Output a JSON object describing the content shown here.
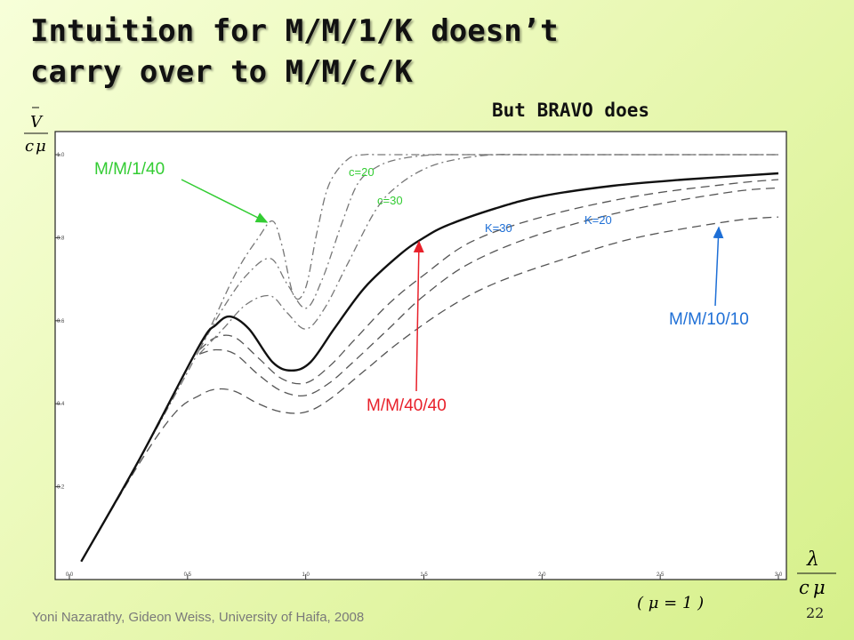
{
  "slide": {
    "title_line1": "Intuition for M/M/1/K doesn’t",
    "title_line2": "carry over to M/M/c/K",
    "subtitle": "But BRAVO does",
    "footer": "Yoni Nazarathy, Gideon Weiss, University of Haifa, 2008",
    "page_number": "22"
  },
  "axis_text": {
    "y_num": "V",
    "y_den_c": "c",
    "y_den_mu": "μ",
    "x_num": "λ",
    "x_den_c": "c",
    "x_den_mu": "μ",
    "x_note": "( μ = 1 )"
  },
  "annotations": {
    "mm1_40": "M/M/1/40",
    "c20": "c=20",
    "c30": "c=30",
    "k30": "K=30",
    "k20": "K=20",
    "mm10_10": "M/M/10/10",
    "mm40_40": "M/M/40/40"
  },
  "colors": {
    "green": "#33cc33",
    "red": "#e8202a",
    "blue": "#1e6fd6",
    "curve": "#111111",
    "dashed": "#555555",
    "dashdot": "#777777"
  },
  "chart_data": {
    "type": "line",
    "xlim": [
      0,
      3.0
    ],
    "ylim": [
      0,
      1.05
    ],
    "xticks": [
      "0.0",
      "0.5",
      "1.0",
      "1.5",
      "2.0",
      "2.5",
      "3.0"
    ],
    "yticks": [
      "0.2",
      "0.4",
      "0.6",
      "0.8",
      "1.0"
    ],
    "grid": false,
    "series": [
      {
        "name": "M/M/40/40",
        "style": "solid",
        "x": [
          0.05,
          0.3,
          0.55,
          0.62,
          0.68,
          0.76,
          0.86,
          0.94,
          1.02,
          1.12,
          1.25,
          1.4,
          1.5,
          1.6,
          1.8,
          2.0,
          2.3,
          2.6,
          3.0
        ],
        "y": [
          0.02,
          0.27,
          0.54,
          0.59,
          0.61,
          0.58,
          0.5,
          0.48,
          0.5,
          0.58,
          0.68,
          0.76,
          0.8,
          0.83,
          0.87,
          0.9,
          0.925,
          0.94,
          0.955
        ]
      },
      {
        "name": "K=30",
        "style": "dashed",
        "x": [
          0.55,
          0.62,
          0.7,
          0.8,
          0.9,
          1.0,
          1.1,
          1.2,
          1.35,
          1.5,
          1.7,
          2.0,
          2.4,
          2.8,
          3.0
        ],
        "y": [
          0.53,
          0.56,
          0.56,
          0.51,
          0.46,
          0.45,
          0.49,
          0.55,
          0.64,
          0.71,
          0.79,
          0.85,
          0.9,
          0.93,
          0.94
        ]
      },
      {
        "name": "K=20",
        "style": "dashed",
        "x": [
          0.55,
          0.62,
          0.7,
          0.8,
          0.9,
          1.0,
          1.1,
          1.2,
          1.35,
          1.5,
          1.7,
          2.0,
          2.4,
          2.8,
          3.0
        ],
        "y": [
          0.52,
          0.53,
          0.52,
          0.47,
          0.43,
          0.42,
          0.45,
          0.5,
          0.58,
          0.66,
          0.74,
          0.81,
          0.87,
          0.91,
          0.92
        ]
      },
      {
        "name": "M/M/10/10",
        "style": "dashed",
        "x": [
          0.05,
          0.3,
          0.45,
          0.55,
          0.62,
          0.7,
          0.8,
          0.9,
          1.0,
          1.1,
          1.25,
          1.4,
          1.6,
          1.8,
          2.1,
          2.4,
          2.8,
          3.0
        ],
        "y": [
          0.02,
          0.26,
          0.38,
          0.42,
          0.435,
          0.43,
          0.4,
          0.38,
          0.38,
          0.41,
          0.48,
          0.55,
          0.63,
          0.69,
          0.75,
          0.8,
          0.84,
          0.85
        ]
      },
      {
        "name": "M/M/1/40",
        "style": "dashdot",
        "x": [
          0.05,
          0.3,
          0.55,
          0.7,
          0.8,
          0.86,
          0.9,
          0.95,
          1.0,
          1.05,
          1.1,
          1.18,
          1.25,
          1.3,
          1.4,
          1.6,
          3.0
        ],
        "y": [
          0.02,
          0.27,
          0.53,
          0.71,
          0.8,
          0.84,
          0.78,
          0.66,
          0.68,
          0.82,
          0.93,
          0.99,
          1.0,
          1.0,
          1.0,
          1.0,
          1.0
        ]
      },
      {
        "name": "c=20",
        "style": "dashdot",
        "x": [
          0.55,
          0.65,
          0.75,
          0.85,
          0.92,
          1.0,
          1.07,
          1.15,
          1.22,
          1.3,
          1.4,
          1.55,
          1.7,
          3.0
        ],
        "y": [
          0.53,
          0.63,
          0.71,
          0.75,
          0.69,
          0.63,
          0.7,
          0.83,
          0.93,
          0.97,
          0.99,
          1.0,
          1.0,
          1.0
        ]
      },
      {
        "name": "c=30",
        "style": "dashdot",
        "x": [
          0.55,
          0.65,
          0.75,
          0.85,
          0.92,
          1.0,
          1.08,
          1.18,
          1.3,
          1.4,
          1.52,
          1.65,
          1.8,
          2.0,
          3.0
        ],
        "y": [
          0.52,
          0.58,
          0.64,
          0.66,
          0.62,
          0.58,
          0.63,
          0.74,
          0.87,
          0.93,
          0.97,
          0.99,
          1.0,
          1.0,
          1.0
        ]
      }
    ]
  }
}
